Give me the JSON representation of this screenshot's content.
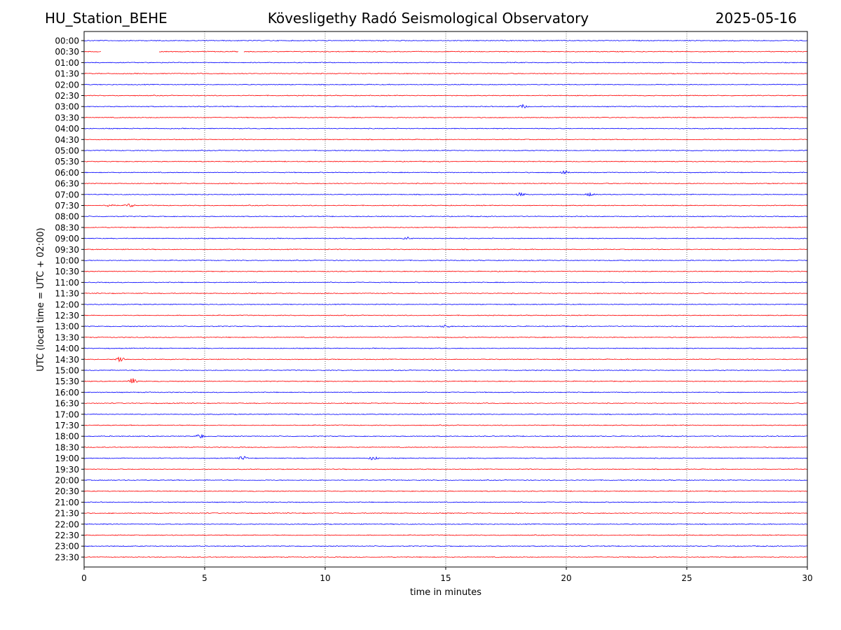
{
  "header": {
    "station": "HU_Station_BEHE",
    "observatory": "Kövesligethy Radó Seismological Observatory",
    "date": "2025-05-16"
  },
  "colors": {
    "trace_a": "#0000ff",
    "trace_b": "#ff0000",
    "axes": "#000000",
    "grid": "#000000"
  },
  "chart_data": {
    "type": "line",
    "xlabel": "time in minutes",
    "ylabel": "UTC (local time = UTC + 02:00)",
    "xlim": [
      0,
      30
    ],
    "xticks": [
      0,
      5,
      10,
      15,
      20,
      25,
      30
    ],
    "grid": "vertical dotted at x ticks",
    "rows": [
      "00:00",
      "00:30",
      "01:00",
      "01:30",
      "02:00",
      "02:30",
      "03:00",
      "03:30",
      "04:00",
      "04:30",
      "05:00",
      "05:30",
      "06:00",
      "06:30",
      "07:00",
      "07:30",
      "08:00",
      "08:30",
      "09:00",
      "09:30",
      "10:00",
      "10:30",
      "11:00",
      "11:30",
      "12:00",
      "12:30",
      "13:00",
      "13:30",
      "14:00",
      "14:30",
      "15:00",
      "15:30",
      "16:00",
      "16:30",
      "17:00",
      "17:30",
      "18:00",
      "18:30",
      "19:00",
      "19:30",
      "20:00",
      "20:30",
      "21:00",
      "21:30",
      "22:00",
      "22:30",
      "23:00",
      "23:30"
    ],
    "row_colors": "alternating blue (on the hour) / red (half hour)",
    "gaps": [
      {
        "row": "00:30",
        "from_min": 0.7,
        "to_min": 3.1
      },
      {
        "row": "00:30",
        "from_min": 6.4,
        "to_min": 6.6
      }
    ],
    "events": [
      {
        "row": "14:30",
        "minute": 1.5,
        "amplitude": 0.5
      },
      {
        "row": "15:30",
        "minute": 2.0,
        "amplitude": 0.45
      },
      {
        "row": "18:00",
        "minute": 4.8,
        "amplitude": 0.35
      },
      {
        "row": "19:00",
        "minute": 6.6,
        "amplitude": 0.3
      },
      {
        "row": "19:00",
        "minute": 12.0,
        "amplitude": 0.3
      },
      {
        "row": "06:00",
        "minute": 19.9,
        "amplitude": 0.3
      },
      {
        "row": "07:00",
        "minute": 18.1,
        "amplitude": 0.25
      },
      {
        "row": "07:00",
        "minute": 21.0,
        "amplitude": 0.25
      },
      {
        "row": "07:30",
        "minute": 1.1,
        "amplitude": 0.3
      },
      {
        "row": "07:30",
        "minute": 1.9,
        "amplitude": 0.3
      },
      {
        "row": "03:00",
        "minute": 18.2,
        "amplitude": 0.25
      },
      {
        "row": "09:00",
        "minute": 13.4,
        "amplitude": 0.2
      },
      {
        "row": "13:00",
        "minute": 15.0,
        "amplitude": 0.2
      }
    ]
  }
}
